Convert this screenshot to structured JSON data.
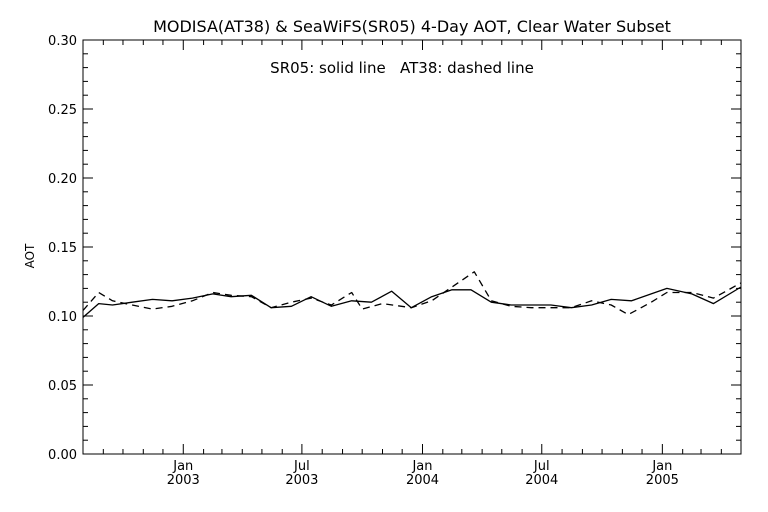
{
  "chart_data": {
    "type": "line",
    "title": "MODISA(AT38) & SeaWiFS(SR05) 4-Day AOT, Clear Water Subset",
    "annotation": "SR05: solid line   AT38: dashed line",
    "xlabel": "",
    "ylabel": "AOT",
    "ylim": [
      0.0,
      0.3
    ],
    "xlim": [
      "2002-08-01",
      "2005-05-01"
    ],
    "grid": false,
    "x_ticks": [
      {
        "date": "2003-01-01",
        "month": "Jan",
        "year": "2003"
      },
      {
        "date": "2003-07-01",
        "month": "Jul",
        "year": "2003"
      },
      {
        "date": "2004-01-01",
        "month": "Jan",
        "year": "2004"
      },
      {
        "date": "2004-07-01",
        "month": "Jul",
        "year": "2004"
      },
      {
        "date": "2005-01-01",
        "month": "Jan",
        "year": "2005"
      }
    ],
    "y_ticks": [
      "0.00",
      "0.05",
      "0.10",
      "0.15",
      "0.20",
      "0.25",
      "0.30"
    ],
    "series": [
      {
        "name": "SR05",
        "style": "solid",
        "color": "#000000",
        "points": [
          [
            "2002-08-01",
            0.099
          ],
          [
            "2002-08-25",
            0.109
          ],
          [
            "2002-09-15",
            0.108
          ],
          [
            "2002-10-15",
            0.11
          ],
          [
            "2002-11-15",
            0.112
          ],
          [
            "2002-12-15",
            0.111
          ],
          [
            "2003-01-15",
            0.113
          ],
          [
            "2003-02-15",
            0.116
          ],
          [
            "2003-03-15",
            0.114
          ],
          [
            "2003-04-15",
            0.115
          ],
          [
            "2003-05-15",
            0.106
          ],
          [
            "2003-06-15",
            0.107
          ],
          [
            "2003-07-15",
            0.114
          ],
          [
            "2003-08-15",
            0.107
          ],
          [
            "2003-09-15",
            0.111
          ],
          [
            "2003-10-15",
            0.11
          ],
          [
            "2003-11-15",
            0.118
          ],
          [
            "2003-12-15",
            0.106
          ],
          [
            "2004-01-15",
            0.114
          ],
          [
            "2004-02-15",
            0.119
          ],
          [
            "2004-03-15",
            0.119
          ],
          [
            "2004-04-15",
            0.11
          ],
          [
            "2004-05-15",
            0.108
          ],
          [
            "2004-06-15",
            0.108
          ],
          [
            "2004-07-15",
            0.108
          ],
          [
            "2004-08-15",
            0.106
          ],
          [
            "2004-09-15",
            0.108
          ],
          [
            "2004-10-15",
            0.112
          ],
          [
            "2004-11-15",
            0.111
          ],
          [
            "2004-12-15",
            0.116
          ],
          [
            "2005-01-08",
            0.12
          ],
          [
            "2005-02-15",
            0.116
          ],
          [
            "2005-03-20",
            0.109
          ],
          [
            "2005-05-01",
            0.121
          ]
        ]
      },
      {
        "name": "AT38",
        "style": "dashed",
        "color": "#000000",
        "points": [
          [
            "2002-08-01",
            0.104
          ],
          [
            "2002-08-25",
            0.117
          ],
          [
            "2002-09-15",
            0.111
          ],
          [
            "2002-10-15",
            0.108
          ],
          [
            "2002-11-15",
            0.105
          ],
          [
            "2002-12-15",
            0.107
          ],
          [
            "2003-01-15",
            0.111
          ],
          [
            "2003-02-15",
            0.117
          ],
          [
            "2003-03-15",
            0.115
          ],
          [
            "2003-04-15",
            0.114
          ],
          [
            "2003-05-15",
            0.106
          ],
          [
            "2003-06-15",
            0.11
          ],
          [
            "2003-07-15",
            0.113
          ],
          [
            "2003-08-15",
            0.108
          ],
          [
            "2003-09-15",
            0.117
          ],
          [
            "2003-10-01",
            0.105
          ],
          [
            "2003-11-01",
            0.109
          ],
          [
            "2003-12-15",
            0.106
          ],
          [
            "2004-01-15",
            0.111
          ],
          [
            "2004-02-15",
            0.121
          ],
          [
            "2004-03-20",
            0.132
          ],
          [
            "2004-04-15",
            0.111
          ],
          [
            "2004-05-15",
            0.107
          ],
          [
            "2004-06-15",
            0.106
          ],
          [
            "2004-07-15",
            0.106
          ],
          [
            "2004-08-15",
            0.106
          ],
          [
            "2004-09-15",
            0.111
          ],
          [
            "2004-10-15",
            0.108
          ],
          [
            "2004-11-10",
            0.101
          ],
          [
            "2004-12-15",
            0.11
          ],
          [
            "2005-01-08",
            0.117
          ],
          [
            "2005-02-15",
            0.117
          ],
          [
            "2005-03-20",
            0.113
          ],
          [
            "2005-05-01",
            0.124
          ]
        ]
      }
    ]
  }
}
